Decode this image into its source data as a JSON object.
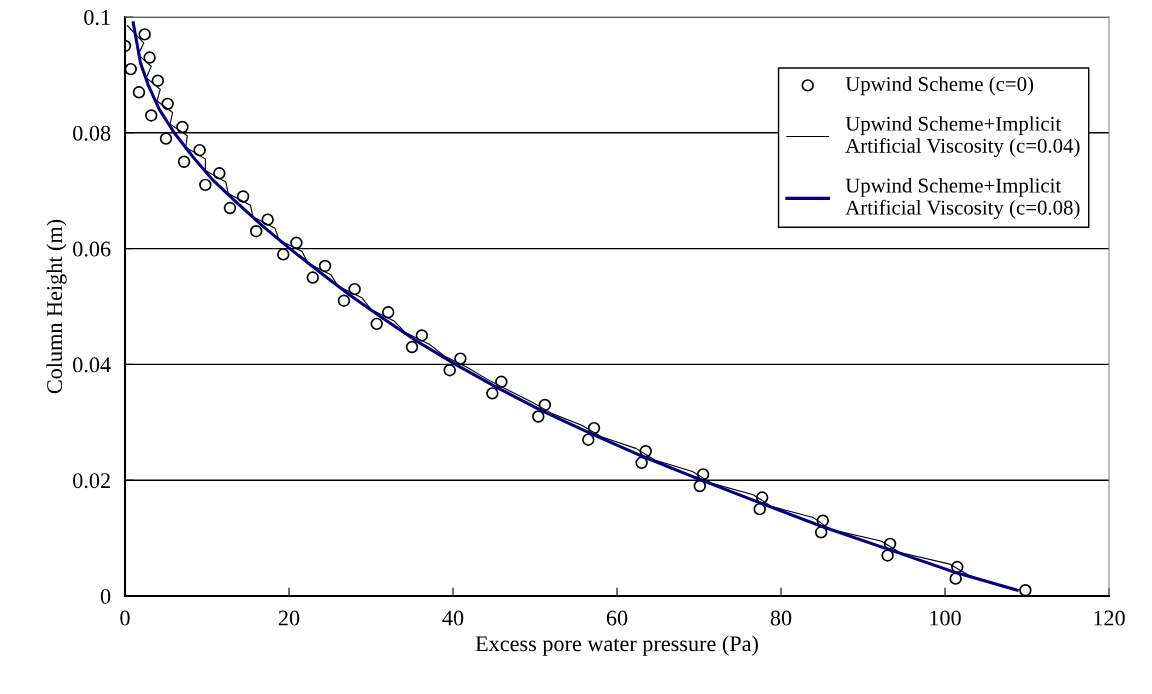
{
  "chart_data": {
    "type": "line",
    "xlabel": "Excess pore water pressure (Pa)",
    "ylabel": "Column Height (m)",
    "xlim": [
      0,
      120
    ],
    "xticks": [
      0,
      20,
      40,
      60,
      80,
      100,
      120
    ],
    "ylim": [
      0,
      0.1
    ],
    "yticks": [
      0,
      0.02,
      0.04,
      0.06,
      0.08,
      0.1
    ],
    "grid": "y",
    "legend": "top right",
    "series": [
      {
        "name": "Upwind Scheme (c=0)",
        "type": "scatter",
        "marker": "circle",
        "color": "#000000",
        "x": [
          0,
          2.4,
          0.7,
          3.0,
          1.7,
          4.0,
          3.2,
          5.2,
          5.0,
          7.0,
          7.2,
          9.1,
          9.8,
          11.5,
          12.8,
          14.4,
          16.0,
          17.4,
          19.3,
          20.9,
          22.9,
          24.4,
          26.7,
          28.0,
          30.7,
          32.1,
          35.0,
          36.2,
          39.6,
          40.9,
          44.8,
          45.9,
          50.4,
          51.2,
          56.5,
          57.2,
          63.0,
          63.5,
          70.1,
          70.5,
          77.4,
          77.7,
          84.9,
          85.1,
          93.0,
          93.3,
          101.3,
          101.5,
          109.8
        ],
        "values": [
          0.095,
          0.097,
          0.091,
          0.093,
          0.087,
          0.089,
          0.083,
          0.085,
          0.079,
          0.081,
          0.075,
          0.077,
          0.071,
          0.073,
          0.067,
          0.069,
          0.063,
          0.065,
          0.059,
          0.061,
          0.055,
          0.057,
          0.051,
          0.053,
          0.047,
          0.049,
          0.043,
          0.045,
          0.039,
          0.041,
          0.035,
          0.037,
          0.031,
          0.033,
          0.027,
          0.029,
          0.023,
          0.025,
          0.019,
          0.021,
          0.015,
          0.017,
          0.011,
          0.013,
          0.007,
          0.009,
          0.003,
          0.005,
          0.001
        ]
      },
      {
        "name": "Upwind Scheme+Implicit\nArtificial Viscosity (c=0.04)",
        "marker": "none",
        "color": "#000000",
        "x": [
          0.3,
          2.3,
          1.6,
          3.2,
          2.6,
          4.3,
          3.9,
          5.8,
          5.5,
          7.6,
          7.4,
          9.8,
          9.8,
          12.3,
          12.6,
          15.3,
          15.6,
          18.3,
          18.8,
          21.6,
          22.3,
          25.1,
          26.0,
          28.9,
          30.0,
          32.8,
          34.2,
          37.1,
          38.9,
          41.7,
          44.1,
          46.8,
          49.6,
          52.1,
          55.7,
          58.1,
          62.3,
          64.6,
          69.2,
          71.5,
          76.6,
          78.8,
          84.0,
          86.0,
          92.2,
          94.5,
          100.6,
          103.0,
          108.5
        ],
        "values": [
          0.0985,
          0.0955,
          0.0935,
          0.0915,
          0.0895,
          0.0875,
          0.0855,
          0.0835,
          0.0815,
          0.0795,
          0.0775,
          0.0755,
          0.0735,
          0.0715,
          0.0695,
          0.0675,
          0.0655,
          0.0635,
          0.0615,
          0.0595,
          0.0575,
          0.0555,
          0.0535,
          0.0515,
          0.0495,
          0.0475,
          0.0455,
          0.0435,
          0.0415,
          0.0395,
          0.0375,
          0.0355,
          0.0335,
          0.0315,
          0.0295,
          0.0275,
          0.0255,
          0.0235,
          0.0215,
          0.0195,
          0.0175,
          0.0155,
          0.0135,
          0.0115,
          0.0095,
          0.0075,
          0.0055,
          0.0035,
          0.001
        ]
      },
      {
        "name": "Upwind Scheme+Implicit\nArtificial Viscosity (c=0.08)",
        "marker": "none",
        "color": "#000080",
        "x": [
          1.0,
          1.9,
          2.9,
          4.2,
          6.0,
          8.2,
          10.6,
          13.6,
          16.7,
          20.1,
          23.7,
          27.4,
          31.4,
          35.6,
          40.3,
          45.4,
          50.8,
          56.9,
          63.3,
          70.3,
          77.6,
          85.0,
          93.2,
          101.4,
          108.8
        ],
        "values": [
          0.099,
          0.092,
          0.088,
          0.084,
          0.08,
          0.076,
          0.072,
          0.068,
          0.064,
          0.06,
          0.056,
          0.052,
          0.048,
          0.044,
          0.04,
          0.036,
          0.032,
          0.028,
          0.024,
          0.02,
          0.016,
          0.012,
          0.008,
          0.004,
          0.001
        ]
      }
    ]
  }
}
